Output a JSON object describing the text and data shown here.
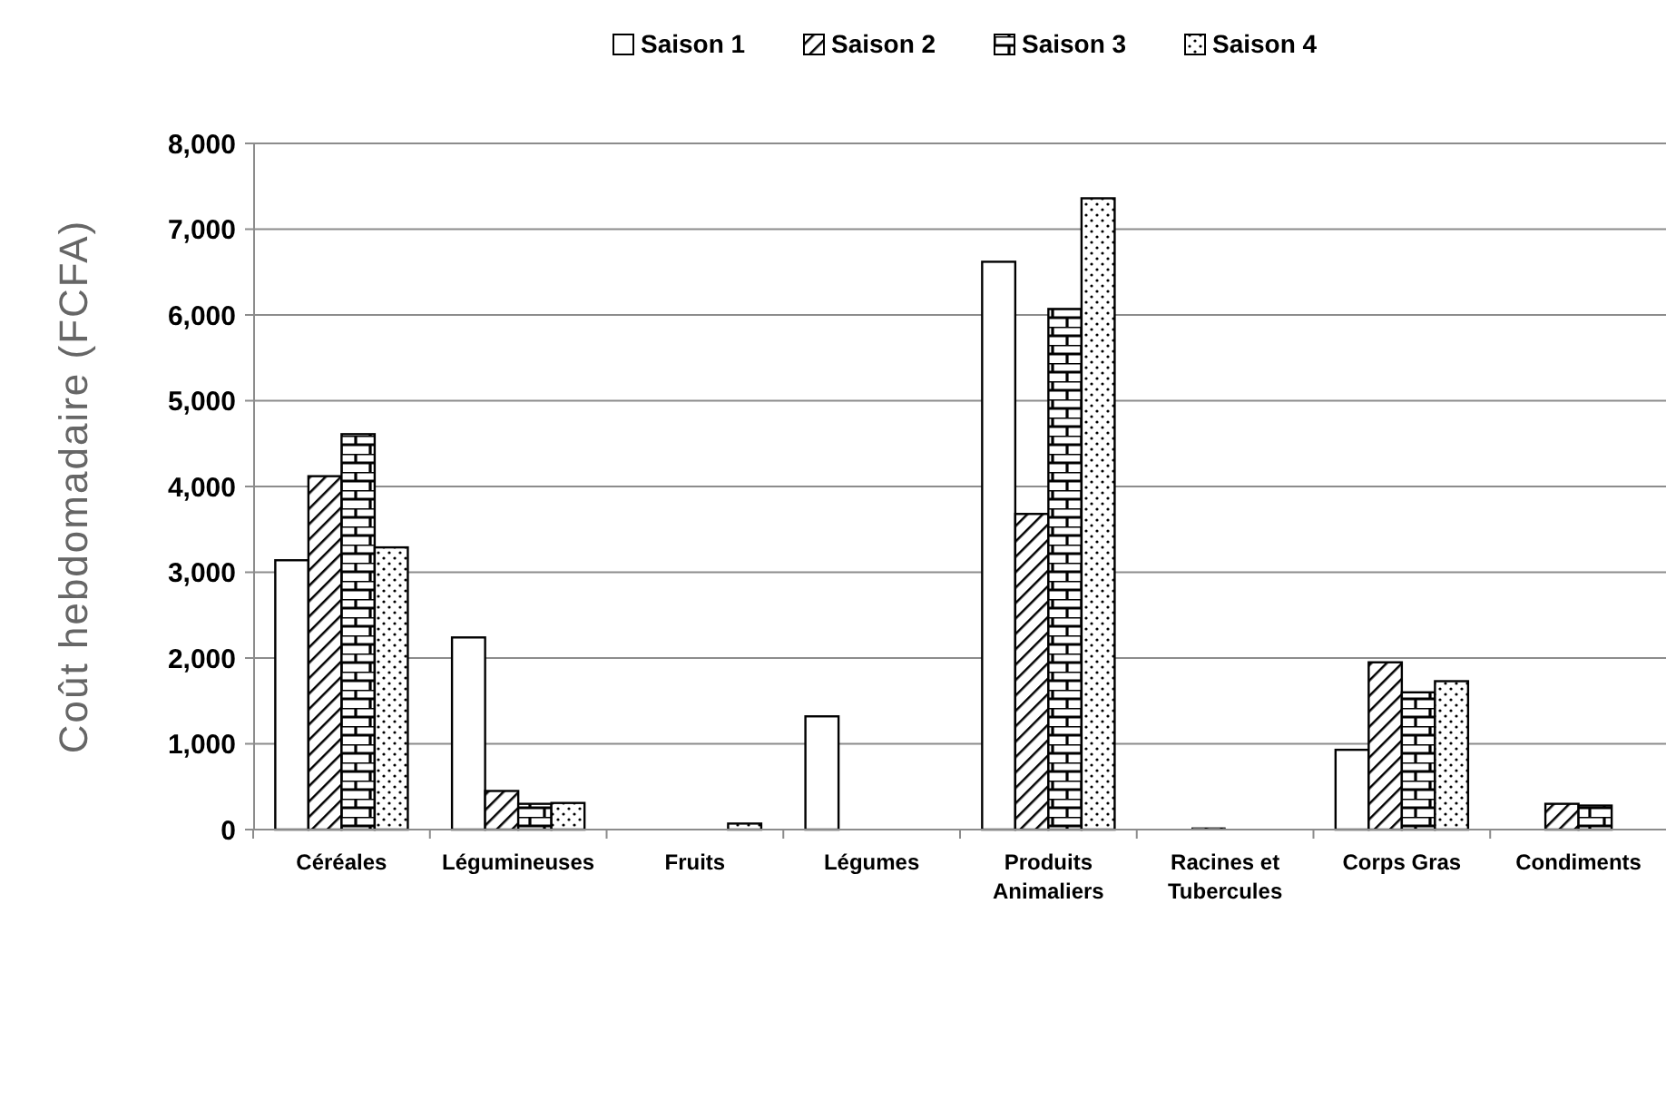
{
  "chart_data": {
    "type": "bar",
    "ylabel": "Coût hebdomadaire  (FCFA)",
    "categories": [
      "Céréales",
      "Légumineuses",
      "Fruits",
      "Légumes",
      "Produits Animaliers",
      "Racines et Tubercules",
      "Corps Gras",
      "Condiments"
    ],
    "series": [
      {
        "name": "Saison 1",
        "color": "#ffffff",
        "values": [
          3140,
          2240,
          0,
          1320,
          6620,
          0,
          930,
          0
        ]
      },
      {
        "name": "Saison 2",
        "color": "#000000",
        "values": [
          4120,
          450,
          0,
          0,
          3680,
          20,
          1950,
          300
        ]
      },
      {
        "name": "Saison 3",
        "color": "#000000",
        "values": [
          4610,
          300,
          0,
          0,
          6070,
          0,
          1600,
          280
        ]
      },
      {
        "name": "Saison 4",
        "color": "#000000",
        "values": [
          3290,
          310,
          70,
          0,
          7360,
          0,
          1730,
          0
        ]
      }
    ],
    "ylim": [
      0,
      8000
    ],
    "yticks": [
      0,
      {
        "value": 1000,
        "label": "1,000"
      },
      {
        "value": 2000,
        "label": "2,000"
      },
      {
        "value": 3000,
        "label": "3,000"
      },
      {
        "value": 4000,
        "label": "4,000"
      },
      {
        "value": 5000,
        "label": "5,000"
      },
      {
        "value": 6000,
        "label": "6,000"
      },
      {
        "value": 7000,
        "label": "7,000"
      },
      {
        "value": 8000,
        "label": "8,000"
      }
    ],
    "grid": "y",
    "legend": "top"
  }
}
